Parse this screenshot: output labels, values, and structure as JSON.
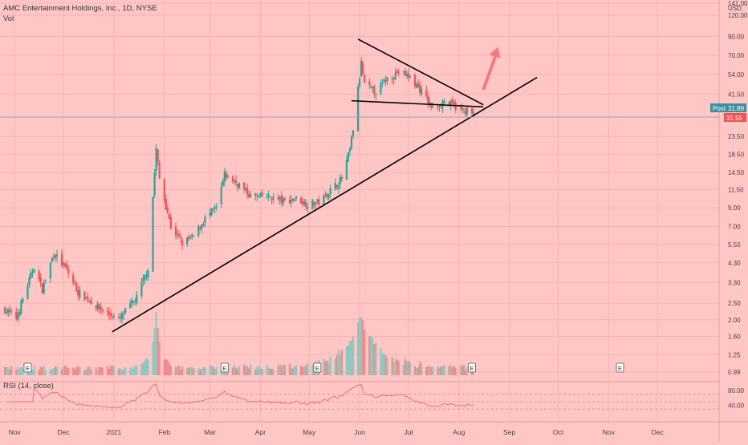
{
  "header": {
    "title": "AMC Entertainment Holdings, Inc., 1D, NYSE",
    "vol_label": "Vol",
    "currency": "USD"
  },
  "colors": {
    "background": "#ffc6c6",
    "up": "#26a69a",
    "down": "#ef5350",
    "vol_up": "#8fc8c0",
    "vol_down": "#f28b8b",
    "text": "#333333",
    "line": "#000000",
    "rsi": "#e57373",
    "arrow": "#f27c7c",
    "post_badge": "#3d8f9e",
    "last_badge": "#ef5350"
  },
  "price_axis": {
    "labels": [
      "141.00",
      "120.00",
      "90.00",
      "70.00",
      "54.00",
      "41.50",
      "31.89",
      "31.55",
      "23.50",
      "18.50",
      "14.50",
      "11.50",
      "9.00",
      "7.00",
      "5.50",
      "4.30",
      "3.30",
      "2.50",
      "2.00",
      "1.60",
      "1.25",
      "0.99"
    ]
  },
  "badges": {
    "post_label": "Post",
    "post_value": "31.89",
    "last_value": "31.55"
  },
  "rsi": {
    "label": "RSI (14, close)",
    "levels": [
      "80.00",
      "40.00"
    ],
    "upper": 70,
    "middle": 50,
    "lower": 30
  },
  "time_axis": {
    "labels": [
      "Nov",
      "Dec",
      "2021",
      "Feb",
      "Mar",
      "Apr",
      "May",
      "Jun",
      "Jul",
      "Aug",
      "Sep",
      "Oct",
      "Nov",
      "Dec"
    ]
  },
  "earnings_marker": "E",
  "chart_data": {
    "type": "candlestick",
    "title": "AMC Entertainment Holdings, Inc., 1D, NYSE",
    "y_scale": "log",
    "ylim": [
      0.99,
      141
    ],
    "x_range": [
      "2020-10-23",
      "2021-12-31"
    ],
    "last_price": 31.55,
    "post_market_price": 31.89,
    "series": [
      {
        "name": "price",
        "points": [
          [
            "2020-10-26",
            2.3
          ],
          [
            "2020-11-02",
            2.05
          ],
          [
            "2020-11-09",
            3.2
          ],
          [
            "2020-11-13",
            4.1
          ],
          [
            "2020-11-18",
            3.0
          ],
          [
            "2020-11-25",
            4.9
          ],
          [
            "2020-12-03",
            3.9
          ],
          [
            "2020-12-10",
            2.9
          ],
          [
            "2020-12-17",
            2.6
          ],
          [
            "2020-12-24",
            2.3
          ],
          [
            "2021-01-04",
            2.0
          ],
          [
            "2021-01-15",
            2.7
          ],
          [
            "2021-01-22",
            4.0
          ],
          [
            "2021-01-27",
            19.9
          ],
          [
            "2021-01-29",
            13.3
          ],
          [
            "2021-02-05",
            7.0
          ],
          [
            "2021-02-12",
            5.6
          ],
          [
            "2021-02-19",
            6.1
          ],
          [
            "2021-02-26",
            7.8
          ],
          [
            "2021-03-05",
            9.0
          ],
          [
            "2021-03-10",
            14.0
          ],
          [
            "2021-03-19",
            12.3
          ],
          [
            "2021-03-26",
            10.5
          ],
          [
            "2021-04-07",
            10.4
          ],
          [
            "2021-04-16",
            9.8
          ],
          [
            "2021-04-23",
            10.2
          ],
          [
            "2021-04-30",
            9.5
          ],
          [
            "2021-05-07",
            9.7
          ],
          [
            "2021-05-14",
            11.4
          ],
          [
            "2021-05-21",
            13.3
          ],
          [
            "2021-05-26",
            19.6
          ],
          [
            "2021-05-28",
            26.1
          ],
          [
            "2021-06-02",
            62.6
          ],
          [
            "2021-06-04",
            47.0
          ],
          [
            "2021-06-11",
            42.8
          ],
          [
            "2021-06-18",
            51.4
          ],
          [
            "2021-06-25",
            56.0
          ],
          [
            "2021-07-02",
            52.0
          ],
          [
            "2021-07-09",
            43.0
          ],
          [
            "2021-07-16",
            34.0
          ],
          [
            "2021-07-23",
            38.0
          ],
          [
            "2021-07-30",
            35.0
          ],
          [
            "2021-08-04",
            33.0
          ],
          [
            "2021-08-06",
            33.4
          ],
          [
            "2021-08-10",
            31.55
          ]
        ]
      }
    ],
    "volume_note": "peak volume around 2021-06-02",
    "trendlines": [
      {
        "name": "support",
        "from": [
          "2020-12-31",
          1.7
        ],
        "to": [
          "2021-09-18",
          52.0
        ]
      },
      {
        "name": "upper",
        "from": [
          "2021-05-31",
          87.0
        ],
        "to": [
          "2021-08-16",
          36.0
        ]
      },
      {
        "name": "lower",
        "from": [
          "2021-05-27",
          38.0
        ],
        "to": [
          "2021-08-16",
          35.0
        ]
      }
    ]
  }
}
